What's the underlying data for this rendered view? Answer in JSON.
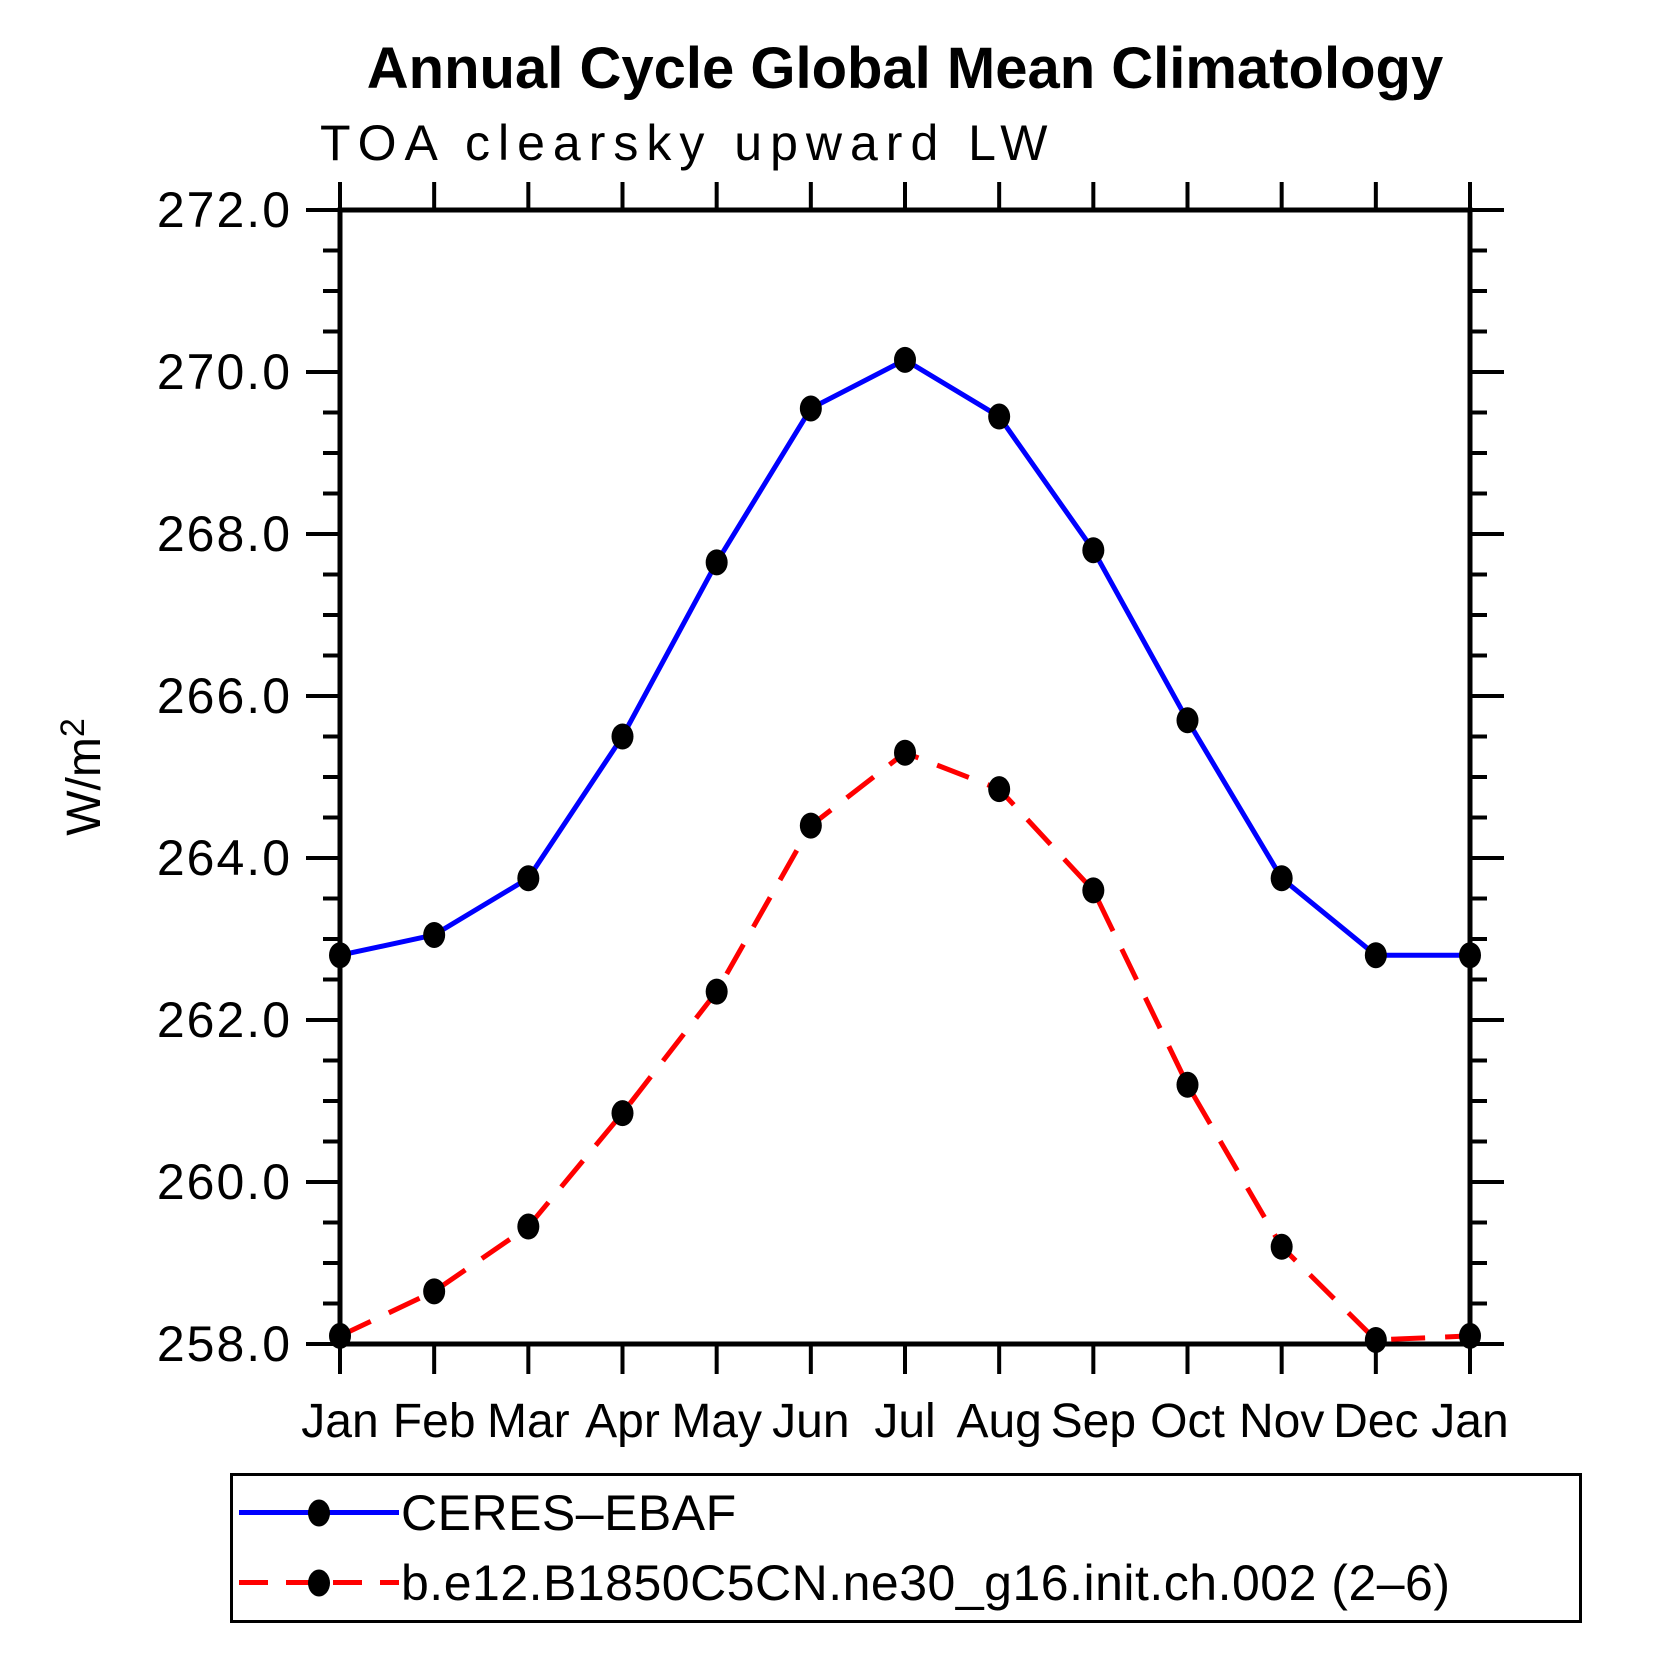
{
  "page": {
    "background": "#ffffff"
  },
  "chart_data": {
    "type": "line",
    "title": "Annual Cycle Global Mean Climatology",
    "subtitle": "TOA clearsky upward LW",
    "ylabel": "W/m2",
    "ylabel_base": "W/m",
    "ylabel_superscript": "2",
    "categories": [
      "Jan",
      "Feb",
      "Mar",
      "Apr",
      "May",
      "Jun",
      "Jul",
      "Aug",
      "Sep",
      "Oct",
      "Nov",
      "Dec",
      "Jan"
    ],
    "ylim": [
      258.0,
      272.0
    ],
    "y_major_step": 2.0,
    "y_minor_step": 0.5,
    "y_tick_decimals": 1,
    "y_tick_labels": [
      "258.0",
      "260.0",
      "262.0",
      "264.0",
      "266.0",
      "268.0",
      "270.0",
      "272.0"
    ],
    "grid": false,
    "legend_position": "bottom-left",
    "axis_color": "#000000",
    "marker": {
      "shape": "circle",
      "color": "#000000"
    },
    "series": [
      {
        "name": "CERES–EBAF",
        "color": "#0000ff",
        "line_style": "solid",
        "values": [
          262.8,
          263.05,
          263.75,
          265.5,
          267.65,
          269.55,
          270.15,
          269.45,
          267.8,
          265.7,
          263.75,
          262.8,
          262.8
        ]
      },
      {
        "name": "b.e12.B1850C5CN.ne30_g16.init.ch.002 (2–6)",
        "color": "#ff0000",
        "line_style": "dashed",
        "values": [
          258.1,
          258.65,
          259.45,
          260.85,
          262.35,
          264.4,
          265.3,
          264.85,
          263.6,
          261.2,
          259.2,
          258.05,
          258.1
        ]
      }
    ]
  }
}
